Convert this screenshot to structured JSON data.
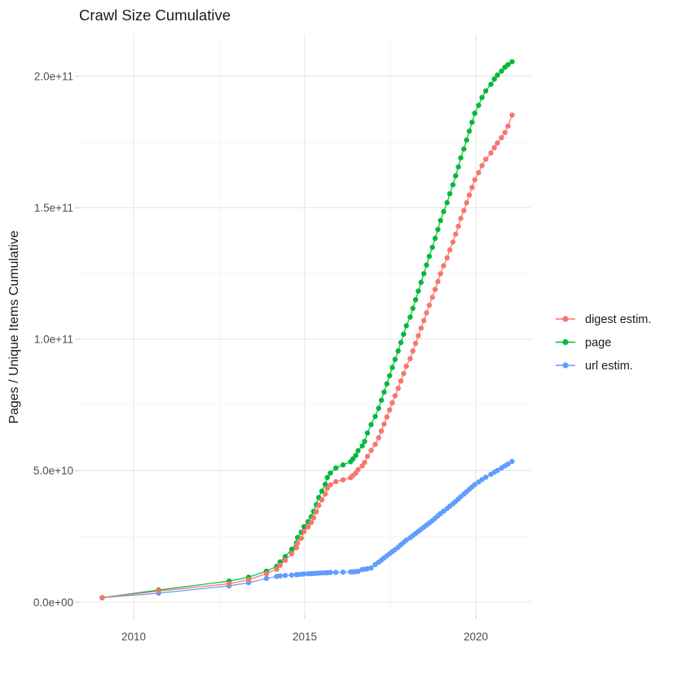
{
  "chart_data": {
    "type": "scatter",
    "title": "Crawl Size Cumulative",
    "xlabel": "",
    "x_unit": "year",
    "grid": true,
    "legend_position": "right",
    "x_axis": {
      "ticks": [
        {
          "value": 2010,
          "label": "2010"
        },
        {
          "value": 2015,
          "label": "2015"
        },
        {
          "value": 2020,
          "label": "2020"
        }
      ],
      "minor": [
        2012.5,
        2017.5
      ],
      "range": [
        2008.45,
        2021.65
      ]
    },
    "y_axis": {
      "title": "Pages / Unique Items Cumulative",
      "ticks": [
        {
          "value": 0,
          "label": "0.0e+00"
        },
        {
          "value": 50000000000.0,
          "label": "5.0e+10"
        },
        {
          "value": 100000000000.0,
          "label": "1.0e+11"
        },
        {
          "value": 150000000000.0,
          "label": "1.5e+11"
        },
        {
          "value": 200000000000.0,
          "label": "2.0e+11"
        }
      ],
      "minor": [
        25000000000.0,
        75000000000.0,
        125000000000.0,
        175000000000.0
      ],
      "range": [
        -8500000000.0,
        216600000000.0
      ]
    },
    "series": [
      {
        "name": "digest estim.",
        "color": "#F8766D",
        "points": [
          [
            2009.08,
            1700000000.0
          ],
          [
            2010.73,
            4200000000.0
          ],
          [
            2012.79,
            7000000000.0
          ],
          [
            2013.36,
            8500000000.0
          ],
          [
            2013.88,
            10800000000.0
          ],
          [
            2014.18,
            12500000000.0
          ],
          [
            2014.28,
            14000000000.0
          ],
          [
            2014.43,
            15900000000.0
          ],
          [
            2014.62,
            18400000000.0
          ],
          [
            2014.76,
            20700000000.0
          ],
          [
            2014.79,
            22400000000.0
          ],
          [
            2014.9,
            24300000000.0
          ],
          [
            2014.98,
            26900000000.0
          ],
          [
            2015.1,
            28600000000.0
          ],
          [
            2015.19,
            30300000000.0
          ],
          [
            2015.26,
            32100000000.0
          ],
          [
            2015.34,
            34400000000.0
          ],
          [
            2015.41,
            36800000000.0
          ],
          [
            2015.5,
            38900000000.0
          ],
          [
            2015.6,
            41100000000.0
          ],
          [
            2015.66,
            43300000000.0
          ],
          [
            2015.75,
            44600000000.0
          ],
          [
            2015.91,
            45800000000.0
          ],
          [
            2016.12,
            46500000000.0
          ],
          [
            2016.34,
            47300000000.0
          ],
          [
            2016.41,
            48100000000.0
          ],
          [
            2016.49,
            49100000000.0
          ],
          [
            2016.56,
            50400000000.0
          ],
          [
            2016.68,
            51800000000.0
          ],
          [
            2016.75,
            53100000000.0
          ],
          [
            2016.83,
            55400000000.0
          ],
          [
            2016.94,
            57700000000.0
          ],
          [
            2017.06,
            60000000000.0
          ],
          [
            2017.16,
            62500000000.0
          ],
          [
            2017.24,
            65100000000.0
          ],
          [
            2017.32,
            67700000000.0
          ],
          [
            2017.4,
            70400000000.0
          ],
          [
            2017.48,
            73100000000.0
          ],
          [
            2017.56,
            75800000000.0
          ],
          [
            2017.64,
            78500000000.0
          ],
          [
            2017.73,
            81300000000.0
          ],
          [
            2017.81,
            84100000000.0
          ],
          [
            2017.89,
            86900000000.0
          ],
          [
            2017.97,
            89700000000.0
          ],
          [
            2018.08,
            92600000000.0
          ],
          [
            2018.16,
            95500000000.0
          ],
          [
            2018.24,
            98400000000.0
          ],
          [
            2018.32,
            101300000000.0
          ],
          [
            2018.4,
            104200000000.0
          ],
          [
            2018.48,
            107100000000.0
          ],
          [
            2018.56,
            110000000000.0
          ],
          [
            2018.64,
            112900000000.0
          ],
          [
            2018.73,
            115900000000.0
          ],
          [
            2018.81,
            118900000000.0
          ],
          [
            2018.89,
            121900000000.0
          ],
          [
            2018.97,
            124900000000.0
          ],
          [
            2019.06,
            127900000000.0
          ],
          [
            2019.16,
            130900000000.0
          ],
          [
            2019.24,
            133900000000.0
          ],
          [
            2019.33,
            136900000000.0
          ],
          [
            2019.41,
            139900000000.0
          ],
          [
            2019.49,
            142900000000.0
          ],
          [
            2019.56,
            145900000000.0
          ],
          [
            2019.65,
            148900000000.0
          ],
          [
            2019.73,
            151900000000.0
          ],
          [
            2019.81,
            154800000000.0
          ],
          [
            2019.89,
            157700000000.0
          ],
          [
            2019.97,
            160600000000.0
          ],
          [
            2020.08,
            163300000000.0
          ],
          [
            2020.18,
            166000000000.0
          ],
          [
            2020.29,
            168400000000.0
          ],
          [
            2020.44,
            170800000000.0
          ],
          [
            2020.54,
            172800000000.0
          ],
          [
            2020.63,
            174600000000.0
          ],
          [
            2020.75,
            176600000000.0
          ],
          [
            2020.85,
            178600000000.0
          ],
          [
            2020.94,
            181000000000.0
          ],
          [
            2021.06,
            185200000000.0
          ]
        ]
      },
      {
        "name": "page",
        "color": "#00BA38",
        "points": [
          [
            2009.08,
            1700000000.0
          ],
          [
            2010.73,
            4600000000.0
          ],
          [
            2012.79,
            8000000000.0
          ],
          [
            2013.36,
            9500000000.0
          ],
          [
            2013.88,
            11800000000.0
          ],
          [
            2014.18,
            13600000000.0
          ],
          [
            2014.28,
            15300000000.0
          ],
          [
            2014.43,
            17300000000.0
          ],
          [
            2014.62,
            20100000000.0
          ],
          [
            2014.76,
            22600000000.0
          ],
          [
            2014.79,
            24600000000.0
          ],
          [
            2014.9,
            26600000000.0
          ],
          [
            2014.98,
            28700000000.0
          ],
          [
            2015.1,
            30600000000.0
          ],
          [
            2015.19,
            32500000000.0
          ],
          [
            2015.26,
            34500000000.0
          ],
          [
            2015.34,
            37100000000.0
          ],
          [
            2015.41,
            39800000000.0
          ],
          [
            2015.5,
            42200000000.0
          ],
          [
            2015.6,
            44800000000.0
          ],
          [
            2015.66,
            47400000000.0
          ],
          [
            2015.75,
            49100000000.0
          ],
          [
            2015.91,
            51000000000.0
          ],
          [
            2016.12,
            52200000000.0
          ],
          [
            2016.34,
            53400000000.0
          ],
          [
            2016.41,
            54500000000.0
          ],
          [
            2016.49,
            55800000000.0
          ],
          [
            2016.56,
            57600000000.0
          ],
          [
            2016.68,
            59400000000.0
          ],
          [
            2016.75,
            61100000000.0
          ],
          [
            2016.83,
            64300000000.0
          ],
          [
            2016.94,
            67500000000.0
          ],
          [
            2017.06,
            70600000000.0
          ],
          [
            2017.16,
            73700000000.0
          ],
          [
            2017.24,
            76800000000.0
          ],
          [
            2017.32,
            79900000000.0
          ],
          [
            2017.4,
            83000000000.0
          ],
          [
            2017.48,
            86100000000.0
          ],
          [
            2017.56,
            89200000000.0
          ],
          [
            2017.64,
            92300000000.0
          ],
          [
            2017.73,
            95500000000.0
          ],
          [
            2017.81,
            98700000000.0
          ],
          [
            2017.89,
            101900000000.0
          ],
          [
            2017.97,
            105100000000.0
          ],
          [
            2018.08,
            108400000000.0
          ],
          [
            2018.16,
            111700000000.0
          ],
          [
            2018.24,
            115000000000.0
          ],
          [
            2018.32,
            118300000000.0
          ],
          [
            2018.4,
            121600000000.0
          ],
          [
            2018.48,
            124900000000.0
          ],
          [
            2018.56,
            128200000000.0
          ],
          [
            2018.64,
            131500000000.0
          ],
          [
            2018.73,
            134900000000.0
          ],
          [
            2018.81,
            138300000000.0
          ],
          [
            2018.89,
            141700000000.0
          ],
          [
            2018.97,
            145100000000.0
          ],
          [
            2019.06,
            148500000000.0
          ],
          [
            2019.16,
            151900000000.0
          ],
          [
            2019.24,
            155300000000.0
          ],
          [
            2019.33,
            158700000000.0
          ],
          [
            2019.41,
            162100000000.0
          ],
          [
            2019.49,
            165500000000.0
          ],
          [
            2019.56,
            168900000000.0
          ],
          [
            2019.65,
            172300000000.0
          ],
          [
            2019.73,
            175700000000.0
          ],
          [
            2019.81,
            179100000000.0
          ],
          [
            2019.89,
            182500000000.0
          ],
          [
            2019.97,
            185900000000.0
          ],
          [
            2020.08,
            188900000000.0
          ],
          [
            2020.18,
            191900000000.0
          ],
          [
            2020.29,
            194400000000.0
          ],
          [
            2020.44,
            196900000000.0
          ],
          [
            2020.54,
            198900000000.0
          ],
          [
            2020.63,
            200400000000.0
          ],
          [
            2020.75,
            201900000000.0
          ],
          [
            2020.85,
            203400000000.0
          ],
          [
            2020.94,
            204400000000.0
          ],
          [
            2021.06,
            205500000000.0
          ]
        ]
      },
      {
        "name": "url estim.",
        "color": "#619CFF",
        "points": [
          [
            2009.08,
            1700000000.0
          ],
          [
            2010.73,
            3400000000.0
          ],
          [
            2012.79,
            6200000000.0
          ],
          [
            2013.36,
            7400000000.0
          ],
          [
            2013.88,
            9000000000.0
          ],
          [
            2014.18,
            9800000000.0
          ],
          [
            2014.28,
            10000000000.0
          ],
          [
            2014.43,
            10150000000.0
          ],
          [
            2014.62,
            10300000000.0
          ],
          [
            2014.76,
            10450000000.0
          ],
          [
            2014.79,
            10500000000.0
          ],
          [
            2014.9,
            10600000000.0
          ],
          [
            2014.98,
            10700000000.0
          ],
          [
            2015.1,
            10800000000.0
          ],
          [
            2015.19,
            10850000000.0
          ],
          [
            2015.26,
            10900000000.0
          ],
          [
            2015.34,
            11000000000.0
          ],
          [
            2015.41,
            11050000000.0
          ],
          [
            2015.5,
            11100000000.0
          ],
          [
            2015.6,
            11150000000.0
          ],
          [
            2015.66,
            11200000000.0
          ],
          [
            2015.75,
            11250000000.0
          ],
          [
            2015.91,
            11300000000.0
          ],
          [
            2016.12,
            11400000000.0
          ],
          [
            2016.34,
            11500000000.0
          ],
          [
            2016.41,
            11550000000.0
          ],
          [
            2016.49,
            11600000000.0
          ],
          [
            2016.56,
            11700000000.0
          ],
          [
            2016.68,
            12400000000.0
          ],
          [
            2016.75,
            12500000000.0
          ],
          [
            2016.83,
            12700000000.0
          ],
          [
            2016.94,
            13000000000.0
          ],
          [
            2017.06,
            14300000000.0
          ],
          [
            2017.16,
            15200000000.0
          ],
          [
            2017.24,
            16000000000.0
          ],
          [
            2017.32,
            16800000000.0
          ],
          [
            2017.4,
            17600000000.0
          ],
          [
            2017.48,
            18400000000.0
          ],
          [
            2017.56,
            19200000000.0
          ],
          [
            2017.64,
            20000000000.0
          ],
          [
            2017.73,
            20900000000.0
          ],
          [
            2017.81,
            21800000000.0
          ],
          [
            2017.89,
            22700000000.0
          ],
          [
            2017.97,
            23600000000.0
          ],
          [
            2018.08,
            24500000000.0
          ],
          [
            2018.16,
            25300000000.0
          ],
          [
            2018.24,
            26100000000.0
          ],
          [
            2018.32,
            26900000000.0
          ],
          [
            2018.4,
            27700000000.0
          ],
          [
            2018.48,
            28500000000.0
          ],
          [
            2018.56,
            29300000000.0
          ],
          [
            2018.64,
            30100000000.0
          ],
          [
            2018.73,
            31000000000.0
          ],
          [
            2018.81,
            31900000000.0
          ],
          [
            2018.89,
            32800000000.0
          ],
          [
            2018.97,
            33700000000.0
          ],
          [
            2019.06,
            34600000000.0
          ],
          [
            2019.16,
            35600000000.0
          ],
          [
            2019.24,
            36500000000.0
          ],
          [
            2019.33,
            37400000000.0
          ],
          [
            2019.41,
            38300000000.0
          ],
          [
            2019.49,
            39200000000.0
          ],
          [
            2019.56,
            40100000000.0
          ],
          [
            2019.65,
            41100000000.0
          ],
          [
            2019.73,
            42000000000.0
          ],
          [
            2019.81,
            42900000000.0
          ],
          [
            2019.89,
            43800000000.0
          ],
          [
            2019.97,
            44700000000.0
          ],
          [
            2020.08,
            45700000000.0
          ],
          [
            2020.18,
            46600000000.0
          ],
          [
            2020.29,
            47500000000.0
          ],
          [
            2020.44,
            48600000000.0
          ],
          [
            2020.54,
            49400000000.0
          ],
          [
            2020.63,
            50100000000.0
          ],
          [
            2020.75,
            51000000000.0
          ],
          [
            2020.85,
            51800000000.0
          ],
          [
            2020.94,
            52500000000.0
          ],
          [
            2021.06,
            53500000000.0
          ]
        ]
      }
    ],
    "legend": {
      "items": [
        {
          "label": "digest estim.",
          "color": "#F8766D"
        },
        {
          "label": "page",
          "color": "#00BA38"
        },
        {
          "label": "url estim.",
          "color": "#619CFF"
        }
      ]
    },
    "style": {
      "grid_major_color": "#e6e6e6",
      "grid_minor_color": "#f2f2f2",
      "tick_color": "#c9c9c9",
      "point_radius": 3.2
    }
  }
}
